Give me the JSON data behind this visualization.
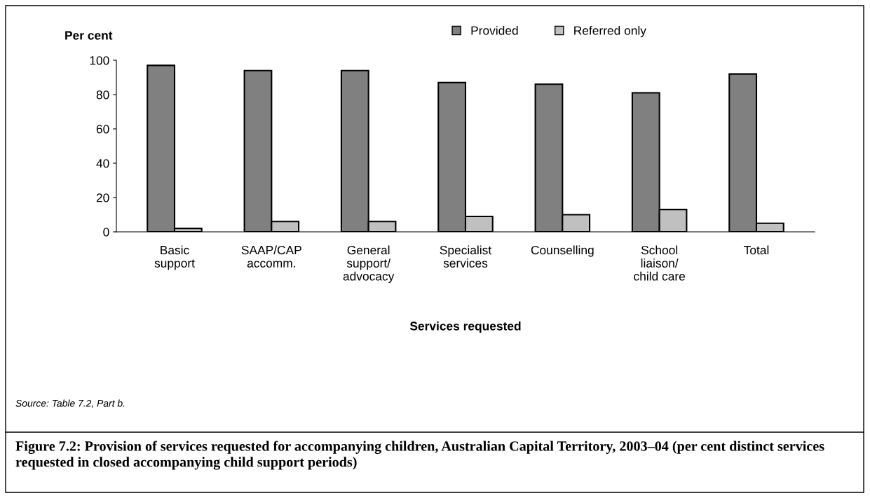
{
  "chart_data": {
    "type": "bar",
    "title": "Figure 7.2: Provision of services requested for accompanying children, Australian Capital Territory, 2003–04 (per cent distinct services requested in closed accompanying child support periods)",
    "ylabel": "Per cent",
    "xlabel": "Services requested",
    "categories": [
      "Basic\nsupport",
      "SAAP/CAP\naccomm.",
      "General\nsupport/\nadvocacy",
      "Specialist\nservices",
      "Counselling",
      "School\nliaison/\nchild care",
      "Total"
    ],
    "series": [
      {
        "name": "Provided",
        "color": "#808080",
        "values": [
          97,
          94,
          94,
          87,
          86,
          81,
          92
        ]
      },
      {
        "name": "Referred only",
        "color": "#c0c0c0",
        "values": [
          2,
          6,
          6,
          9,
          10,
          13,
          5
        ]
      }
    ],
    "ylim": [
      0,
      100
    ],
    "yticks": [
      0,
      20,
      40,
      60,
      80,
      100
    ],
    "grid": false,
    "legend": "top",
    "annotations": [
      "Source: Table 7.2, Part b."
    ]
  }
}
